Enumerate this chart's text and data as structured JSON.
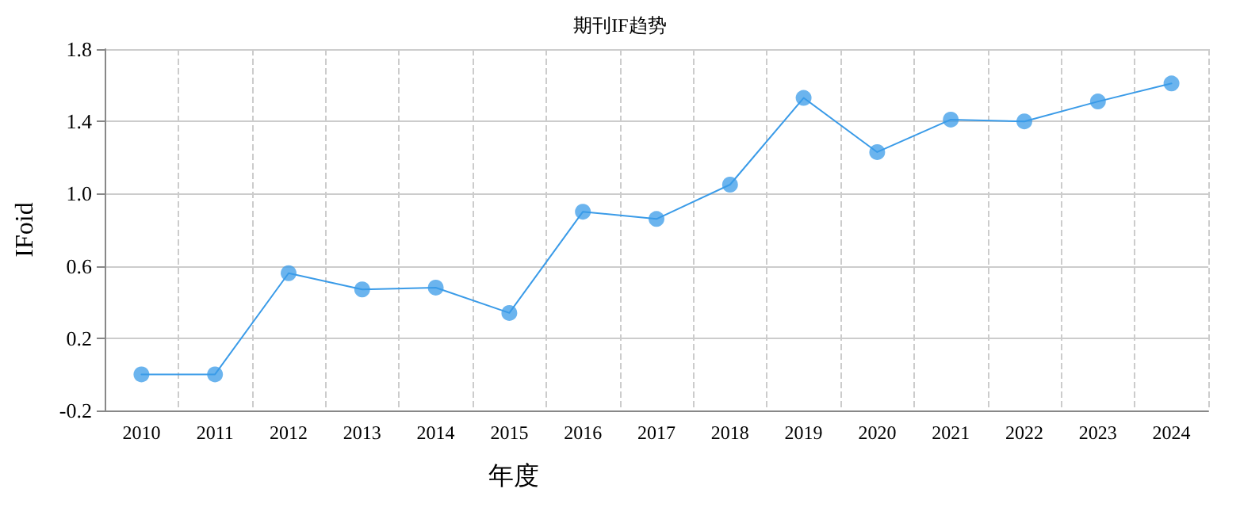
{
  "chart_data": {
    "type": "line",
    "title": "期刊IF趋势",
    "xlabel": "年度",
    "ylabel": "IFoid",
    "categories": [
      "2010",
      "2011",
      "2012",
      "2013",
      "2014",
      "2015",
      "2016",
      "2017",
      "2018",
      "2019",
      "2020",
      "2021",
      "2022",
      "2023",
      "2024"
    ],
    "series": [
      {
        "color": "#3a9be8",
        "values": [
          0.0,
          0.0,
          0.56,
          0.47,
          0.48,
          0.34,
          0.9,
          0.86,
          1.05,
          1.53,
          1.23,
          1.41,
          1.4,
          1.51,
          1.61
        ]
      }
    ],
    "ylim": [
      -0.2,
      1.8
    ],
    "yticks": [
      -0.2,
      0.2,
      0.6,
      {
        "value": 1.0,
        "label": "1.0"
      },
      1.4,
      1.8
    ],
    "grid": true,
    "marker": "circle",
    "line_style": "solid"
  }
}
